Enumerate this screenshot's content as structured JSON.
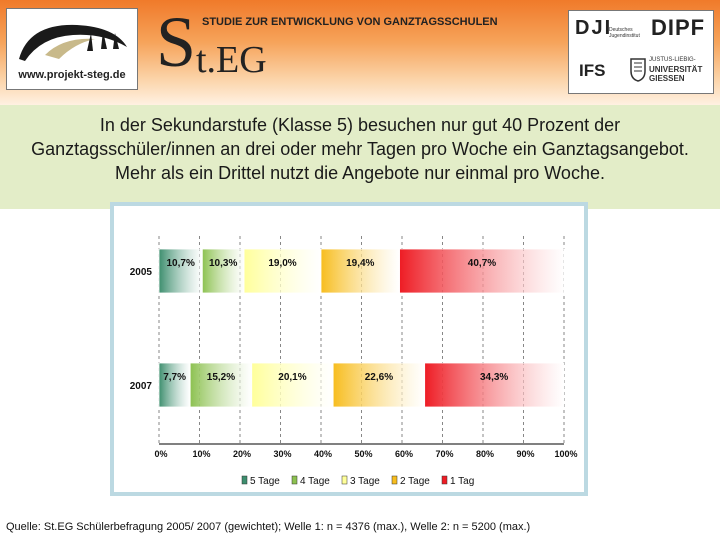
{
  "header": {
    "website": "www.projekt-steg.de",
    "tagline": "STUDIE ZUR ENTWICKLUNG VON GANZTAGSSCHULEN",
    "brand_initial": "S",
    "brand_rest": "t.EG",
    "partners": {
      "dji": "DJI",
      "dji_sub": "Deutsches Jugendinstitut",
      "dipf": "DIPF",
      "ifs": "IFS",
      "giessen_sub": "JUSTUS-LIEBIG-",
      "giessen_name": "UNIVERSITÄT",
      "giessen_city": "GIESSEN"
    }
  },
  "intro": {
    "text": "In der Sekundarstufe (Klasse 5) besuchen nur gut 40 Prozent der Ganztagsschüler/innen an drei oder mehr Tagen pro Woche ein Ganztagsangebot. Mehr als ein Drittel nutzt die Angebote nur einmal pro Woche."
  },
  "chart_data": {
    "type": "bar",
    "orientation": "horizontal",
    "stacked": "100%",
    "categories": [
      "2005",
      "2007"
    ],
    "series": [
      {
        "name": "5 Tage",
        "values": [
          10.7,
          7.7
        ],
        "labels": [
          "10,7%",
          "7,7%"
        ],
        "color": "#3d8e6e"
      },
      {
        "name": "4 Tage",
        "values": [
          10.3,
          15.2
        ],
        "labels": [
          "10,3%",
          "15,2%"
        ],
        "color": "#8cc150"
      },
      {
        "name": "3 Tage",
        "values": [
          19.0,
          20.1
        ],
        "labels": [
          "19,0%",
          "20,1%"
        ],
        "color": "#ffff9a"
      },
      {
        "name": "2 Tage",
        "values": [
          19.4,
          22.6
        ],
        "labels": [
          "19,4%",
          "22,6%"
        ],
        "color": "#f7bd1e"
      },
      {
        "name": "1 Tag",
        "values": [
          40.7,
          34.3
        ],
        "labels": [
          "40,7%",
          "34,3%"
        ],
        "color": "#ee1c24"
      }
    ],
    "xlim": [
      0,
      100
    ],
    "xticks": [
      "0%",
      "10%",
      "20%",
      "30%",
      "40%",
      "50%",
      "60%",
      "70%",
      "80%",
      "90%",
      "100%"
    ],
    "gridlines": "vertical dashed",
    "legend": "bottom"
  },
  "footer": {
    "source": "Quelle: St.EG Schülerbefragung 2005/ 2007 (gewichtet); Welle 1: n = 4376 (max.), Welle 2: n = 5200 (max.)"
  }
}
